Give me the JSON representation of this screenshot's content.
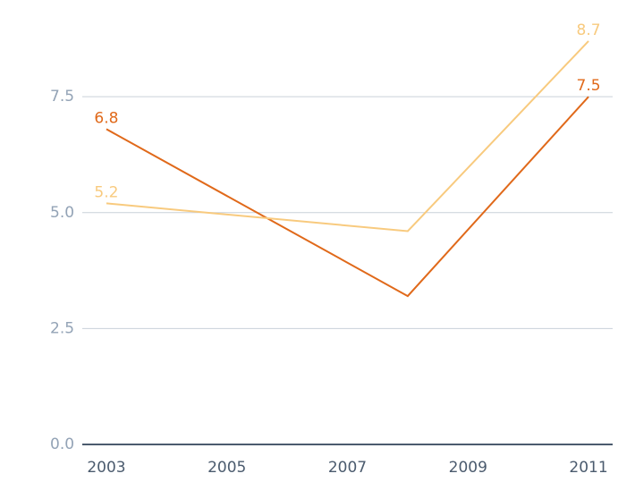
{
  "chart_data": {
    "type": "line",
    "x": [
      2003,
      2008,
      2011
    ],
    "series": [
      {
        "color": "#e0691a",
        "values": [
          6.8,
          3.2,
          7.5
        ]
      },
      {
        "color": "#f8ca7e",
        "values": [
          5.2,
          4.6,
          8.7
        ]
      }
    ],
    "xlim": [
      2002.6,
      2011.4
    ],
    "xticks": [
      2003,
      2005,
      2007,
      2009,
      2011
    ],
    "ylim": [
      0,
      9.2
    ],
    "yticks": [
      {
        "value": 0,
        "label": "0.0"
      },
      2.5,
      {
        "value": 5,
        "label": "5.0"
      },
      7.5
    ],
    "grid": true
  }
}
